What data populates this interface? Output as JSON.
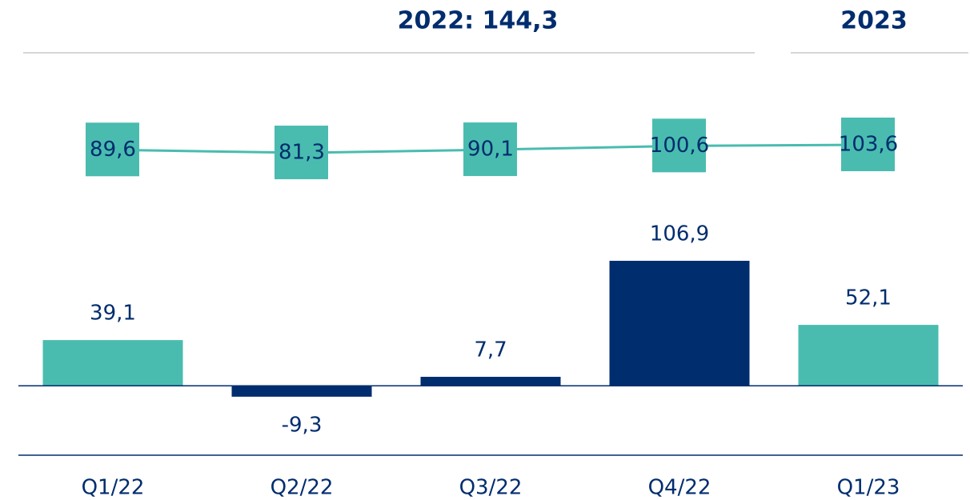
{
  "chart_data": {
    "type": "bar",
    "annotations": [
      "2022: 144,3",
      "2023"
    ],
    "categories": [
      "Q1/22",
      "Q2/22",
      "Q3/22",
      "Q4/22",
      "Q1/23"
    ],
    "series": [
      {
        "type": "bar",
        "values": [
          39.1,
          -9.3,
          7.7,
          106.9,
          52.1
        ],
        "value_labels": [
          "39,1",
          "-9,3",
          "7,7",
          "106,9",
          "52,1"
        ],
        "colors": [
          "#49bcaf",
          "#002d6e",
          "#002d6e",
          "#002d6e",
          "#49bcaf"
        ]
      },
      {
        "type": "line",
        "axis": "y2",
        "color": "#49bcaf",
        "values": [
          89.6,
          81.3,
          90.1,
          100.6,
          103.6
        ],
        "value_labels": [
          "89,6",
          "81,3",
          "90,1",
          "100,6",
          "103,6"
        ]
      }
    ],
    "ylim": [
      -60,
      282
    ],
    "y2lim": [
      -760,
      350
    ]
  }
}
